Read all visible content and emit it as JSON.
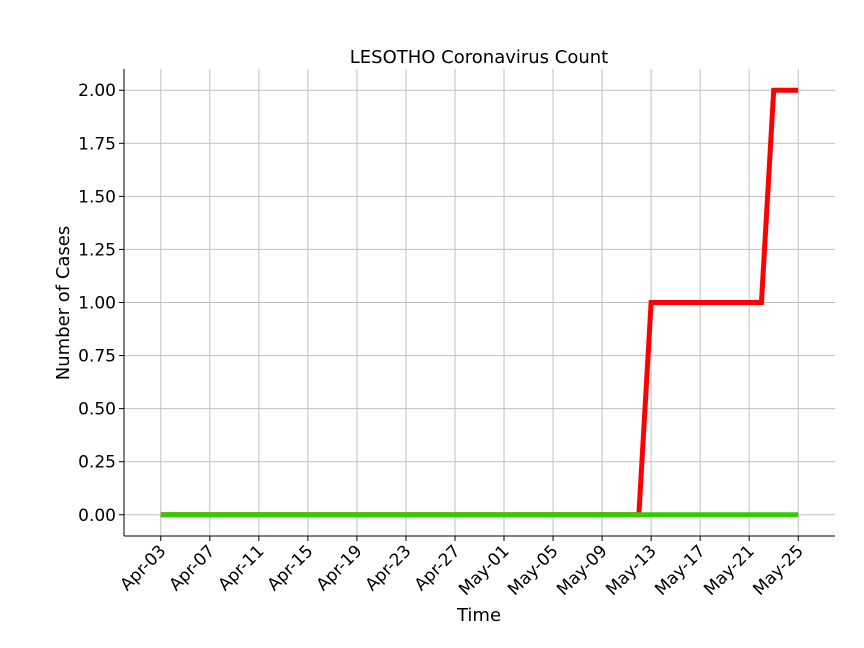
{
  "chart_data": {
    "type": "line",
    "title": "LESOTHO Coronavirus Count",
    "xlabel": "Time",
    "ylabel": "Number of Cases",
    "x_ticks": [
      "Apr-03",
      "Apr-07",
      "Apr-11",
      "Apr-15",
      "Apr-19",
      "Apr-23",
      "Apr-27",
      "May-01",
      "May-05",
      "May-09",
      "May-13",
      "May-17",
      "May-21",
      "May-25"
    ],
    "y_ticks": [
      "0.00",
      "0.25",
      "0.50",
      "0.75",
      "1.00",
      "1.25",
      "1.50",
      "1.75",
      "2.00"
    ],
    "ylim": [
      -0.1,
      2.1
    ],
    "xlim": [
      "2020-03-31",
      "2020-05-28"
    ],
    "grid": true,
    "series": [
      {
        "color": "#ff0000",
        "points": [
          {
            "x": "2020-04-03",
            "y": 0
          },
          {
            "x": "2020-05-12",
            "y": 0
          },
          {
            "x": "2020-05-13",
            "y": 1
          },
          {
            "x": "2020-05-22",
            "y": 1
          },
          {
            "x": "2020-05-23",
            "y": 2
          },
          {
            "x": "2020-05-25",
            "y": 2
          }
        ]
      },
      {
        "color": "#33cc00",
        "points": [
          {
            "x": "2020-04-03",
            "y": 0
          },
          {
            "x": "2020-05-25",
            "y": 0
          }
        ]
      }
    ]
  }
}
